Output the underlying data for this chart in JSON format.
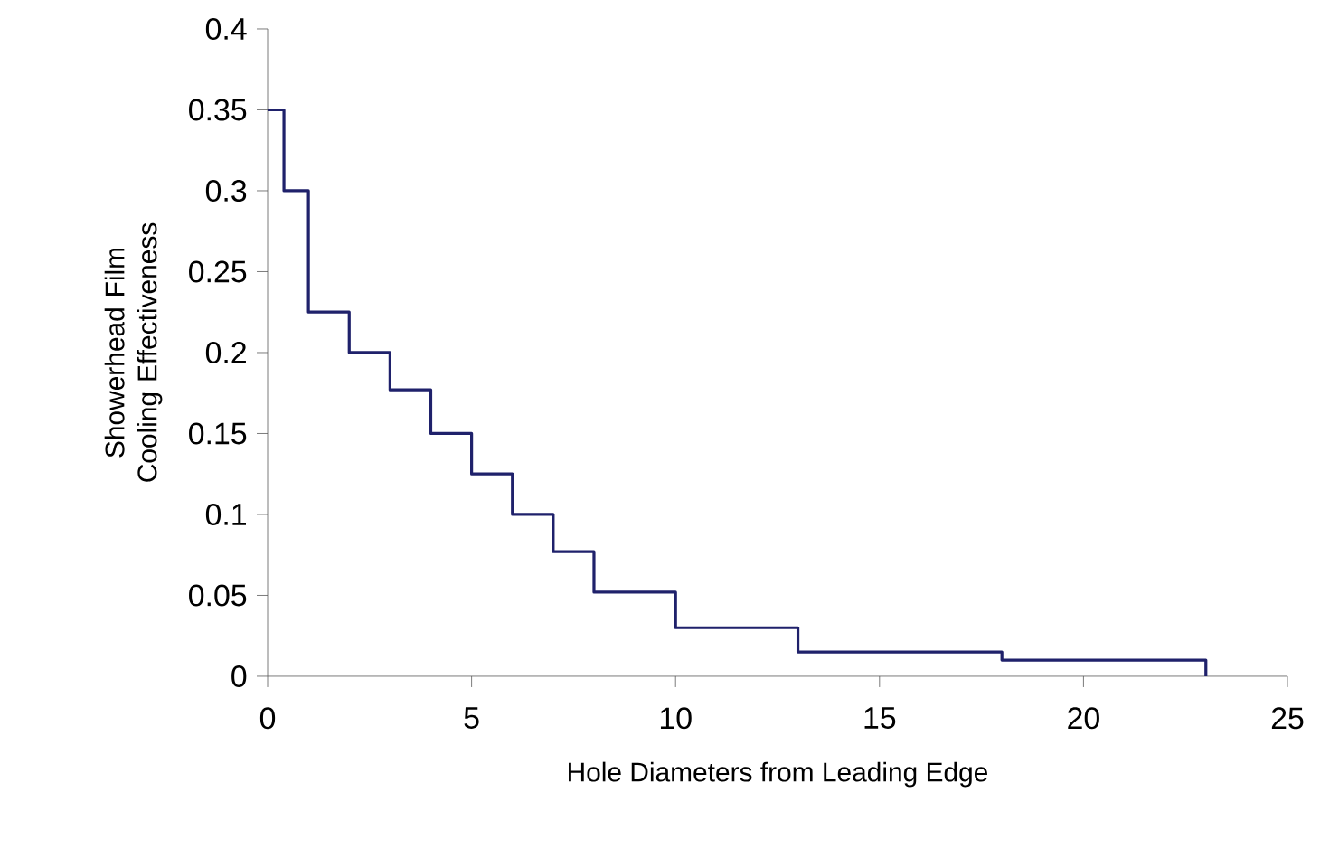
{
  "chart_data": {
    "type": "step",
    "xlabel": "Hole Diameters from Leading Edge",
    "ylabel": "Showerhead Film Cooling Effectiveness",
    "x": [
      0,
      0.4,
      1,
      2,
      3,
      4,
      5,
      6,
      7,
      8,
      10,
      13,
      18,
      23
    ],
    "values": [
      0.35,
      0.3,
      0.225,
      0.2,
      0.177,
      0.15,
      0.125,
      0.1,
      0.077,
      0.052,
      0.03,
      0.015,
      0.01,
      0
    ],
    "color": "#1f216b",
    "xlim": [
      0,
      25
    ],
    "xticks": [
      0,
      5,
      10,
      15,
      20,
      25
    ],
    "ylim": [
      0,
      0.4
    ],
    "yticks": [
      0,
      0.05,
      0.1,
      0.15,
      0.2,
      0.25,
      0.3,
      0.35,
      0.4
    ],
    "grid": false
  }
}
